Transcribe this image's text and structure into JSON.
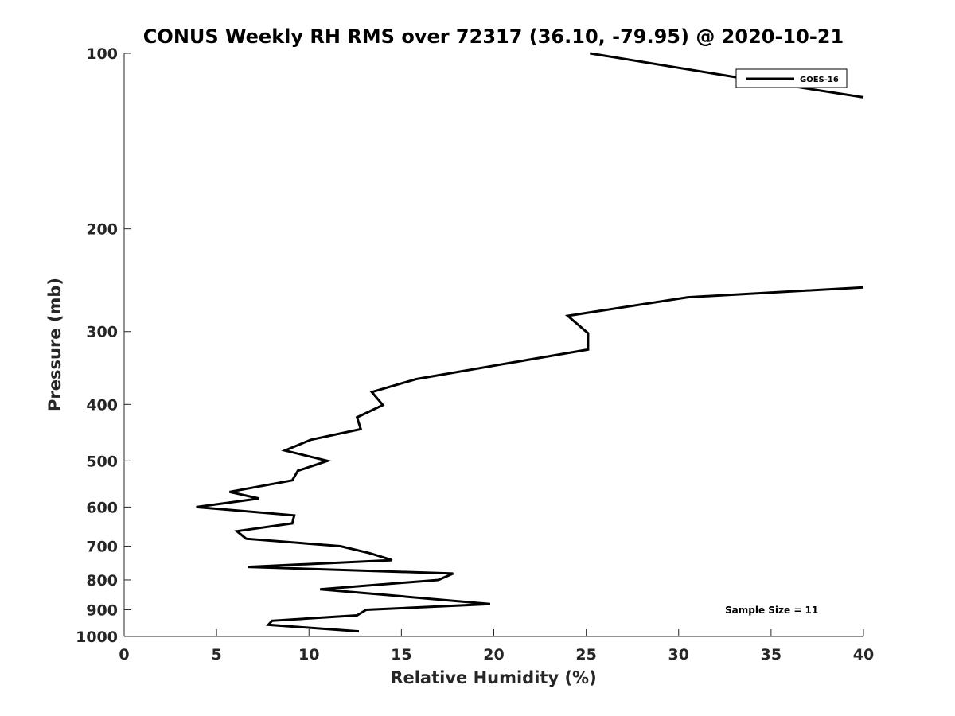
{
  "chart_data": {
    "type": "line",
    "title": "CONUS Weekly RH RMS over 72317 (36.10, -79.95) @ 2020-10-21",
    "xlabel": "Relative Humidity (%)",
    "ylabel": "Pressure (mb)",
    "xlim": [
      0,
      40
    ],
    "ylim": [
      100,
      1000
    ],
    "y_scale": "log",
    "y_reversed": true,
    "x_ticks": [
      0,
      5,
      10,
      15,
      20,
      25,
      30,
      35,
      40
    ],
    "y_ticks": [
      100,
      200,
      300,
      400,
      500,
      600,
      700,
      800,
      900,
      1000
    ],
    "grid": false,
    "legend_position": "top-right",
    "annotation": "Sample Size = 11",
    "series": [
      {
        "name": "GOES-16",
        "color": "#000000",
        "segments": [
          [
            {
              "x": 25.2,
              "y": 100
            },
            {
              "x": 34.7,
              "y": 112
            },
            {
              "x": 40.0,
              "y": 119
            }
          ],
          [
            {
              "x": 40.0,
              "y": 252
            },
            {
              "x": 30.5,
              "y": 262
            },
            {
              "x": 24.0,
              "y": 282
            },
            {
              "x": 25.1,
              "y": 302
            },
            {
              "x": 25.1,
              "y": 322
            },
            {
              "x": 15.8,
              "y": 362
            },
            {
              "x": 13.4,
              "y": 381
            },
            {
              "x": 14.0,
              "y": 401
            },
            {
              "x": 12.6,
              "y": 421
            },
            {
              "x": 12.8,
              "y": 441
            },
            {
              "x": 10.1,
              "y": 460
            },
            {
              "x": 8.7,
              "y": 480
            },
            {
              "x": 11.0,
              "y": 500
            },
            {
              "x": 9.4,
              "y": 520
            },
            {
              "x": 9.1,
              "y": 540
            },
            {
              "x": 5.7,
              "y": 565
            },
            {
              "x": 7.3,
              "y": 580
            },
            {
              "x": 3.9,
              "y": 600
            },
            {
              "x": 9.2,
              "y": 620
            },
            {
              "x": 9.1,
              "y": 640
            },
            {
              "x": 6.1,
              "y": 660
            },
            {
              "x": 6.6,
              "y": 680
            },
            {
              "x": 11.7,
              "y": 700
            },
            {
              "x": 13.3,
              "y": 720
            },
            {
              "x": 14.5,
              "y": 740
            },
            {
              "x": 6.7,
              "y": 760
            },
            {
              "x": 17.8,
              "y": 780
            },
            {
              "x": 17.0,
              "y": 800
            },
            {
              "x": 10.6,
              "y": 830
            },
            {
              "x": 14.4,
              "y": 850
            },
            {
              "x": 19.8,
              "y": 880
            },
            {
              "x": 13.1,
              "y": 900
            },
            {
              "x": 12.6,
              "y": 920
            },
            {
              "x": 8.0,
              "y": 940
            },
            {
              "x": 7.8,
              "y": 955
            },
            {
              "x": 12.7,
              "y": 980
            }
          ]
        ]
      }
    ]
  }
}
